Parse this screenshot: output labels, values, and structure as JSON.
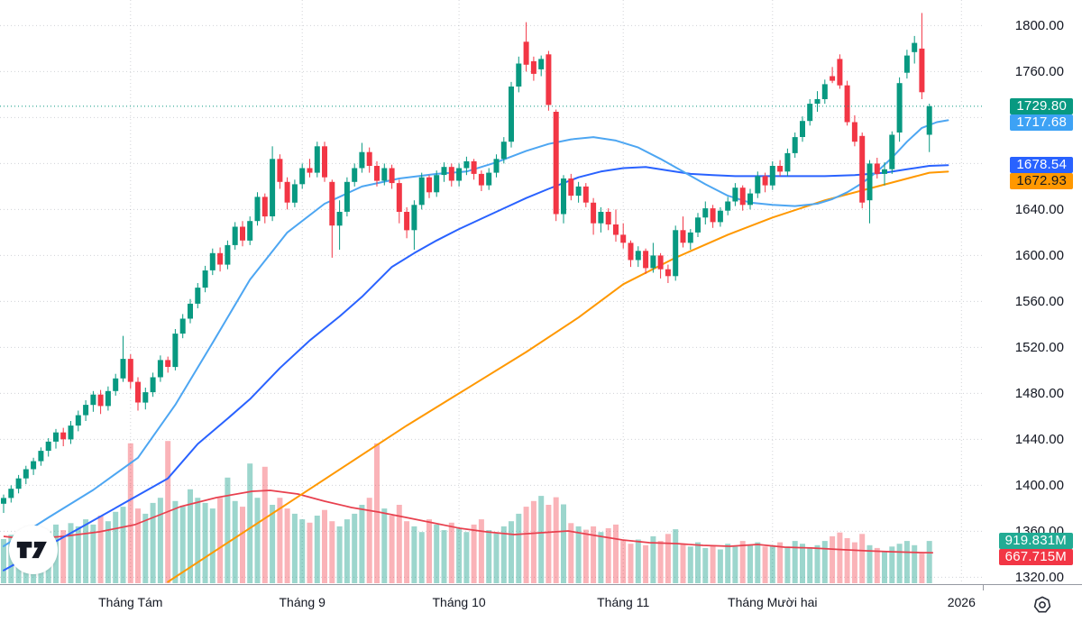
{
  "icons": {
    "logo": "tradingview-logo",
    "settings": "gear-icon"
  },
  "chart_data": {
    "type": "candlestick",
    "legend_position": "none",
    "grid": "dotted",
    "ylim": [
      1314,
      1822.3
    ],
    "volume_axis_max_M": 12442,
    "colors": {
      "up": "#089981",
      "down": "#F23645",
      "vol_up": "rgba(8,153,129,0.40)",
      "vol_down": "rgba(242,54,69,0.38)",
      "ma_fast": "#4DA6F2",
      "ma_mid": "#2962FF",
      "ma_slow": "#FF9800",
      "vol_ma": "#E8404E",
      "price_line": "#089981",
      "grid_line": "rgba(90,96,110,0.28)",
      "axis_line": "#9598A1",
      "axis_text": "#131722"
    },
    "current_price": {
      "label": "1729.80",
      "value": 1729.8,
      "bg": "#089981",
      "fg": "#ffffff"
    },
    "price_badges": [
      {
        "name": "last-price",
        "label": "1729.80",
        "value": 1729.8,
        "bg": "#089981",
        "fg": "#ffffff"
      },
      {
        "name": "ma-fast",
        "label": "1717.68",
        "value": 1717.68,
        "bg": "#3DA2F5",
        "fg": "#ffffff"
      },
      {
        "name": "ma-mid",
        "label": "1678.54",
        "value": 1678.54,
        "bg": "#2962FF",
        "fg": "#ffffff"
      },
      {
        "name": "ma-slow",
        "label": "1672.93",
        "value": 1672.93,
        "bg": "#FF9800",
        "fg": "#16181d"
      }
    ],
    "volume_badges": [
      {
        "name": "volume-value",
        "label": "919.831M",
        "value_M": 919.831,
        "bg": "#22AB94",
        "fg": "#ffffff"
      },
      {
        "name": "volume-ma",
        "label": "667.715M",
        "value_M": 667.715,
        "bg": "#F23645",
        "fg": "#ffffff"
      }
    ],
    "y_ticks": [
      {
        "label": "1800.00",
        "value": 1800
      },
      {
        "label": "1760.00",
        "value": 1760
      },
      {
        "label": "1720.00",
        "value": 1720
      },
      {
        "label": "1680.00",
        "value": 1680
      },
      {
        "label": "1640.00",
        "value": 1640
      },
      {
        "label": "1600.00",
        "value": 1600
      },
      {
        "label": "1560.00",
        "value": 1560
      },
      {
        "label": "1520.00",
        "value": 1520
      },
      {
        "label": "1480.00",
        "value": 1480
      },
      {
        "label": "1440.00",
        "value": 1440
      },
      {
        "label": "1400.00",
        "value": 1400
      },
      {
        "label": "1360.00",
        "value": 1360
      },
      {
        "label": "1320.00",
        "value": 1320
      }
    ],
    "x_ticks": [
      {
        "label": "Tháng Tám",
        "index": 17
      },
      {
        "label": "Tháng 9",
        "index": 40
      },
      {
        "label": "Tháng 10",
        "index": 61
      },
      {
        "label": "Tháng 11",
        "index": 83
      },
      {
        "label": "Tháng Mười hai",
        "index": 103
      },
      {
        "label": "2026",
        "index": 128.3
      }
    ],
    "candles": [
      [
        1384,
        1392,
        1376,
        1389
      ],
      [
        1389,
        1400,
        1385,
        1397
      ],
      [
        1397,
        1409,
        1393,
        1406
      ],
      [
        1406,
        1417,
        1401,
        1414
      ],
      [
        1414,
        1424,
        1409,
        1421
      ],
      [
        1421,
        1433,
        1417,
        1430
      ],
      [
        1430,
        1441,
        1425,
        1438
      ],
      [
        1438,
        1449,
        1432,
        1446
      ],
      [
        1446,
        1450,
        1434,
        1440
      ],
      [
        1440,
        1456,
        1436,
        1452
      ],
      [
        1452,
        1465,
        1447,
        1461
      ],
      [
        1461,
        1474,
        1456,
        1470
      ],
      [
        1470,
        1482,
        1464,
        1479
      ],
      [
        1479,
        1483,
        1462,
        1469
      ],
      [
        1469,
        1486,
        1465,
        1482
      ],
      [
        1482,
        1497,
        1478,
        1493
      ],
      [
        1493,
        1530,
        1490,
        1510
      ],
      [
        1510,
        1514,
        1484,
        1490
      ],
      [
        1490,
        1494,
        1465,
        1472
      ],
      [
        1472,
        1485,
        1466,
        1481
      ],
      [
        1481,
        1498,
        1477,
        1494
      ],
      [
        1494,
        1513,
        1490,
        1509
      ],
      [
        1509,
        1512,
        1498,
        1503
      ],
      [
        1503,
        1536,
        1500,
        1532
      ],
      [
        1532,
        1549,
        1528,
        1545
      ],
      [
        1545,
        1562,
        1541,
        1558
      ],
      [
        1558,
        1576,
        1554,
        1572
      ],
      [
        1572,
        1591,
        1568,
        1587
      ],
      [
        1587,
        1606,
        1583,
        1602
      ],
      [
        1602,
        1607,
        1586,
        1592
      ],
      [
        1592,
        1613,
        1588,
        1609
      ],
      [
        1609,
        1629,
        1605,
        1625
      ],
      [
        1625,
        1630,
        1608,
        1613
      ],
      [
        1613,
        1634,
        1609,
        1630
      ],
      [
        1630,
        1655,
        1626,
        1651
      ],
      [
        1651,
        1654,
        1628,
        1634
      ],
      [
        1634,
        1695,
        1630,
        1684
      ],
      [
        1684,
        1688,
        1658,
        1664
      ],
      [
        1664,
        1668,
        1640,
        1646
      ],
      [
        1646,
        1666,
        1642,
        1662
      ],
      [
        1662,
        1680,
        1658,
        1676
      ],
      [
        1676,
        1684,
        1668,
        1672
      ],
      [
        1672,
        1699,
        1668,
        1695
      ],
      [
        1695,
        1699,
        1664,
        1668
      ],
      [
        1664,
        1666,
        1598,
        1626
      ],
      [
        1626,
        1648,
        1605,
        1638
      ],
      [
        1638,
        1668,
        1634,
        1664
      ],
      [
        1664,
        1680,
        1660,
        1676
      ],
      [
        1676,
        1698,
        1672,
        1690
      ],
      [
        1690,
        1694,
        1672,
        1678
      ],
      [
        1678,
        1682,
        1660,
        1665
      ],
      [
        1665,
        1680,
        1661,
        1676
      ],
      [
        1676,
        1679,
        1658,
        1663
      ],
      [
        1663,
        1666,
        1628,
        1638
      ],
      [
        1638,
        1642,
        1615,
        1622
      ],
      [
        1622,
        1648,
        1605,
        1644
      ],
      [
        1644,
        1672,
        1640,
        1668
      ],
      [
        1668,
        1670,
        1650,
        1655
      ],
      [
        1655,
        1674,
        1651,
        1670
      ],
      [
        1670,
        1681,
        1664,
        1677
      ],
      [
        1677,
        1680,
        1660,
        1665
      ],
      [
        1665,
        1680,
        1660,
        1676
      ],
      [
        1676,
        1686,
        1670,
        1682
      ],
      [
        1682,
        1684,
        1666,
        1671
      ],
      [
        1671,
        1674,
        1656,
        1661
      ],
      [
        1661,
        1676,
        1657,
        1672
      ],
      [
        1672,
        1688,
        1668,
        1684
      ],
      [
        1684,
        1703,
        1680,
        1699
      ],
      [
        1699,
        1751,
        1694,
        1747
      ],
      [
        1747,
        1773,
        1742,
        1767
      ],
      [
        1786,
        1803,
        1760,
        1766
      ],
      [
        1769,
        1773,
        1752,
        1758
      ],
      [
        1762,
        1774,
        1756,
        1771
      ],
      [
        1775,
        1778,
        1726,
        1731
      ],
      [
        1725,
        1727,
        1630,
        1636
      ],
      [
        1636,
        1670,
        1628,
        1667
      ],
      [
        1667,
        1671,
        1648,
        1652
      ],
      [
        1652,
        1664,
        1646,
        1660
      ],
      [
        1660,
        1663,
        1642,
        1646
      ],
      [
        1646,
        1650,
        1618,
        1628
      ],
      [
        1628,
        1642,
        1620,
        1638
      ],
      [
        1638,
        1641,
        1622,
        1627
      ],
      [
        1627,
        1640,
        1612,
        1618
      ],
      [
        1618,
        1628,
        1606,
        1611
      ],
      [
        1611,
        1613,
        1590,
        1596
      ],
      [
        1596,
        1608,
        1590,
        1604
      ],
      [
        1604,
        1606,
        1584,
        1589
      ],
      [
        1589,
        1611,
        1585,
        1600
      ],
      [
        1600,
        1602,
        1580,
        1588
      ],
      [
        1588,
        1592,
        1576,
        1582
      ],
      [
        1582,
        1626,
        1578,
        1622
      ],
      [
        1622,
        1634,
        1607,
        1611
      ],
      [
        1611,
        1623,
        1605,
        1620
      ],
      [
        1620,
        1637,
        1616,
        1633
      ],
      [
        1633,
        1647,
        1627,
        1641
      ],
      [
        1641,
        1644,
        1624,
        1629
      ],
      [
        1629,
        1642,
        1625,
        1639
      ],
      [
        1639,
        1651,
        1635,
        1647
      ],
      [
        1647,
        1663,
        1643,
        1659
      ],
      [
        1659,
        1661,
        1639,
        1644
      ],
      [
        1644,
        1658,
        1640,
        1654
      ],
      [
        1654,
        1673,
        1650,
        1669
      ],
      [
        1669,
        1672,
        1655,
        1661
      ],
      [
        1661,
        1682,
        1657,
        1678
      ],
      [
        1678,
        1683,
        1669,
        1673
      ],
      [
        1673,
        1693,
        1669,
        1689
      ],
      [
        1689,
        1707,
        1685,
        1703
      ],
      [
        1703,
        1721,
        1699,
        1717
      ],
      [
        1717,
        1736,
        1713,
        1732
      ],
      [
        1732,
        1743,
        1725,
        1736
      ],
      [
        1736,
        1753,
        1732,
        1749
      ],
      [
        1756,
        1764,
        1750,
        1752
      ],
      [
        1771,
        1775,
        1745,
        1748
      ],
      [
        1748,
        1752,
        1713,
        1716
      ],
      [
        1716,
        1722,
        1695,
        1699
      ],
      [
        1704,
        1707,
        1641,
        1646
      ],
      [
        1648,
        1683,
        1628,
        1680
      ],
      [
        1680,
        1685,
        1667,
        1671
      ],
      [
        1671,
        1681,
        1661,
        1675
      ],
      [
        1675,
        1708,
        1671,
        1705
      ],
      [
        1707,
        1755,
        1699,
        1750
      ],
      [
        1759,
        1779,
        1754,
        1774
      ],
      [
        1777,
        1791,
        1767,
        1785
      ],
      [
        1780,
        1811,
        1736,
        1742
      ],
      [
        1705,
        1732,
        1690,
        1729.8
      ]
    ],
    "volumes_M": [
      960,
      1050,
      1000,
      1150,
      1075,
      1190,
      1115,
      1270,
      1150,
      1300,
      1230,
      1380,
      1270,
      1460,
      1340,
      1540,
      1650,
      3000,
      1610,
      1500,
      1730,
      1840,
      3050,
      1770,
      1650,
      2020,
      1840,
      1730,
      1610,
      1840,
      2270,
      1770,
      1650,
      2570,
      1840,
      2500,
      1690,
      1840,
      1610,
      1500,
      1380,
      1310,
      1460,
      1580,
      1340,
      1230,
      1380,
      1500,
      1690,
      1840,
      3000,
      1610,
      1460,
      1690,
      1340,
      1230,
      1110,
      1380,
      1270,
      1150,
      1310,
      1190,
      1110,
      1270,
      1380,
      1150,
      1080,
      1230,
      1340,
      1500,
      1650,
      1770,
      1880,
      1690,
      1850,
      1700,
      1300,
      1230,
      1160,
      1230,
      1110,
      1190,
      1270,
      920,
      860,
      950,
      830,
      1020,
      920,
      1070,
      1170,
      860,
      800,
      890,
      770,
      830,
      740,
      860,
      800,
      920,
      830,
      890,
      800,
      830,
      890,
      800,
      920,
      860,
      770,
      830,
      920,
      1020,
      1100,
      980,
      890,
      1070,
      830,
      770,
      700,
      800,
      860,
      920,
      830,
      650,
      919.831
    ],
    "ma_fast_points": [
      [
        0,
        1347
      ],
      [
        6,
        1372
      ],
      [
        12,
        1396
      ],
      [
        18,
        1424
      ],
      [
        23,
        1470
      ],
      [
        28,
        1524
      ],
      [
        33,
        1579
      ],
      [
        38,
        1620
      ],
      [
        43,
        1645
      ],
      [
        48,
        1660
      ],
      [
        53,
        1667
      ],
      [
        58,
        1671
      ],
      [
        62,
        1673
      ],
      [
        66,
        1681
      ],
      [
        70,
        1691
      ],
      [
        73,
        1697
      ],
      [
        76,
        1701
      ],
      [
        79,
        1703
      ],
      [
        82,
        1700
      ],
      [
        85,
        1694
      ],
      [
        88,
        1684
      ],
      [
        91,
        1673
      ],
      [
        94,
        1662
      ],
      [
        97,
        1652
      ],
      [
        100,
        1646
      ],
      [
        103,
        1644
      ],
      [
        106,
        1643
      ],
      [
        109,
        1645
      ],
      [
        111,
        1649
      ],
      [
        113,
        1655
      ],
      [
        115,
        1663
      ],
      [
        117,
        1673
      ],
      [
        119,
        1685
      ],
      [
        121,
        1699
      ],
      [
        123,
        1711
      ],
      [
        125,
        1716
      ],
      [
        126.5,
        1717.68
      ]
    ],
    "ma_mid_points": [
      [
        0,
        1326
      ],
      [
        5,
        1344
      ],
      [
        10,
        1362
      ],
      [
        16,
        1384
      ],
      [
        22,
        1406
      ],
      [
        26,
        1436
      ],
      [
        30,
        1458
      ],
      [
        33,
        1475
      ],
      [
        37,
        1502
      ],
      [
        41,
        1526
      ],
      [
        45,
        1547
      ],
      [
        48,
        1564
      ],
      [
        52,
        1590
      ],
      [
        55,
        1602
      ],
      [
        58,
        1613
      ],
      [
        61,
        1623
      ],
      [
        64,
        1632
      ],
      [
        67,
        1641
      ],
      [
        70,
        1650
      ],
      [
        73,
        1658
      ],
      [
        77,
        1668
      ],
      [
        80,
        1673
      ],
      [
        83,
        1676
      ],
      [
        86,
        1677
      ],
      [
        89,
        1674
      ],
      [
        92,
        1671
      ],
      [
        95,
        1670
      ],
      [
        98,
        1669
      ],
      [
        102,
        1669
      ],
      [
        106,
        1669
      ],
      [
        110,
        1669
      ],
      [
        114,
        1670
      ],
      [
        118,
        1672
      ],
      [
        121,
        1675
      ],
      [
        124,
        1678
      ],
      [
        126.5,
        1678.54
      ]
    ],
    "ma_slow_points": [
      [
        22,
        1316
      ],
      [
        30,
        1350
      ],
      [
        38,
        1384
      ],
      [
        46,
        1418
      ],
      [
        54,
        1452
      ],
      [
        62,
        1484
      ],
      [
        70,
        1516
      ],
      [
        77,
        1546
      ],
      [
        83,
        1575
      ],
      [
        90,
        1598
      ],
      [
        97,
        1618
      ],
      [
        103,
        1633
      ],
      [
        110,
        1648
      ],
      [
        117,
        1660
      ],
      [
        124,
        1672
      ],
      [
        126.5,
        1672.93
      ]
    ],
    "vol_ma_points_M": [
      [
        0,
        1018
      ],
      [
        3.1,
        960
      ],
      [
        8,
        1018
      ],
      [
        12.8,
        1114
      ],
      [
        17.6,
        1267
      ],
      [
        23.7,
        1651
      ],
      [
        28.5,
        1843
      ],
      [
        33.3,
        1978
      ],
      [
        35.7,
        1997
      ],
      [
        39.4,
        1920
      ],
      [
        43,
        1766
      ],
      [
        46.6,
        1632
      ],
      [
        50.2,
        1536
      ],
      [
        53.9,
        1421
      ],
      [
        57.5,
        1306
      ],
      [
        61.1,
        1190
      ],
      [
        64.7,
        1114
      ],
      [
        68.4,
        1056
      ],
      [
        72,
        1094
      ],
      [
        75.6,
        1133
      ],
      [
        79.2,
        1037
      ],
      [
        82.9,
        941
      ],
      [
        86.5,
        883
      ],
      [
        90.1,
        864
      ],
      [
        93.7,
        826
      ],
      [
        97.3,
        806
      ],
      [
        101,
        845
      ],
      [
        104.6,
        787
      ],
      [
        108.2,
        770
      ],
      [
        111.8,
        740
      ],
      [
        115.5,
        710
      ],
      [
        119.1,
        690
      ],
      [
        122.7,
        672
      ],
      [
        124.5,
        667.715
      ]
    ]
  }
}
